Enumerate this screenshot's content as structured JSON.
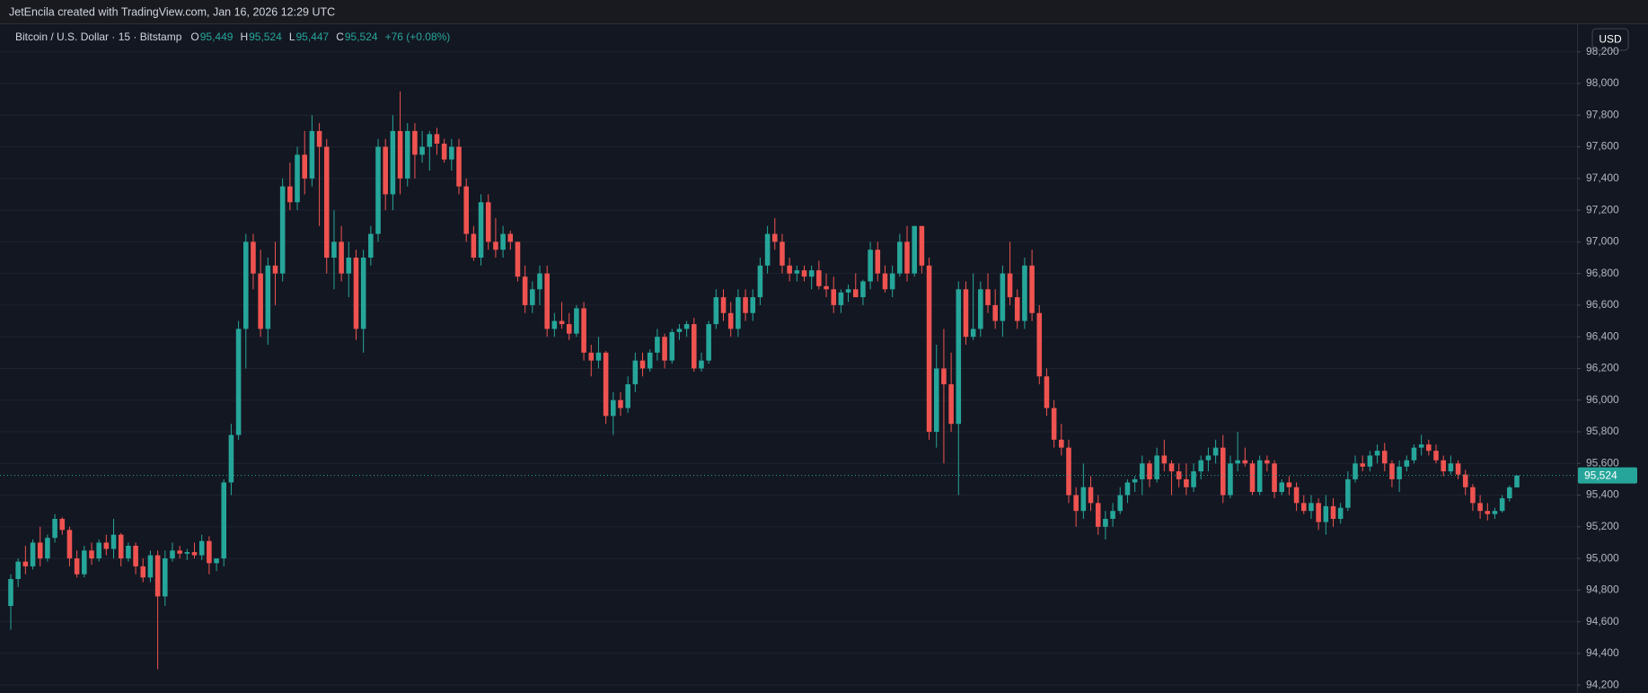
{
  "topbar": "JetEncila created with TradingView.com, Jan 16, 2026 12:29 UTC",
  "chart_data": {
    "type": "candlestick",
    "header": {
      "symbol": "Bitcoin / U.S. Dollar · 15 · Bitstamp",
      "open_label": "O",
      "open": "95,449",
      "high_label": "H",
      "high": "95,524",
      "low_label": "L",
      "low": "95,447",
      "close_label": "C",
      "close": "95,524",
      "change": "+76 (+0.08%)"
    },
    "currency": "USD",
    "up_color": "#26a69a",
    "down_color": "#ef5350",
    "grid": true,
    "ylim": [
      94150,
      98380
    ],
    "yticks": [
      {
        "value": 94200,
        "label": "94,200"
      },
      {
        "value": 94400,
        "label": "94,400"
      },
      {
        "value": 94600,
        "label": "94,600"
      },
      {
        "value": 94800,
        "label": "94,800"
      },
      {
        "value": 95000,
        "label": "95,000"
      },
      {
        "value": 95200,
        "label": "95,200"
      },
      {
        "value": 95400,
        "label": "95,400"
      },
      {
        "value": 95600,
        "label": "95,600"
      },
      {
        "value": 95800,
        "label": "95,800"
      },
      {
        "value": 96000,
        "label": "96,000"
      },
      {
        "value": 96200,
        "label": "96,200"
      },
      {
        "value": 96400,
        "label": "96,400"
      },
      {
        "value": 96600,
        "label": "96,600"
      },
      {
        "value": 96800,
        "label": "96,800"
      },
      {
        "value": 97000,
        "label": "97,000"
      },
      {
        "value": 97200,
        "label": "97,200"
      },
      {
        "value": 97400,
        "label": "97,400"
      },
      {
        "value": 97600,
        "label": "97,600"
      },
      {
        "value": 97800,
        "label": "97,800"
      },
      {
        "value": 98000,
        "label": "98,000"
      },
      {
        "value": 98200,
        "label": "98,200"
      }
    ],
    "last_price": {
      "value": 95524,
      "label": "95,524"
    },
    "candles": [
      [
        94700,
        94900,
        94550,
        94870
      ],
      [
        94870,
        95000,
        94820,
        94980
      ],
      [
        94980,
        95080,
        94900,
        94950
      ],
      [
        94950,
        95120,
        94930,
        95100
      ],
      [
        95100,
        95200,
        94950,
        95000
      ],
      [
        95000,
        95150,
        94980,
        95130
      ],
      [
        95130,
        95280,
        95100,
        95250
      ],
      [
        95250,
        95260,
        95150,
        95180
      ],
      [
        95180,
        95200,
        94950,
        95000
      ],
      [
        95000,
        95050,
        94880,
        94900
      ],
      [
        94900,
        95080,
        94880,
        95050
      ],
      [
        95050,
        95100,
        94960,
        95000
      ],
      [
        95000,
        95120,
        94980,
        95100
      ],
      [
        95100,
        95150,
        95020,
        95060
      ],
      [
        95060,
        95250,
        95000,
        95150
      ],
      [
        95150,
        95160,
        94950,
        95000
      ],
      [
        95000,
        95100,
        94980,
        95080
      ],
      [
        95080,
        95100,
        94900,
        94950
      ],
      [
        94950,
        95000,
        94850,
        94880
      ],
      [
        94880,
        95050,
        94850,
        95020
      ],
      [
        95020,
        95050,
        94300,
        94760
      ],
      [
        94760,
        95050,
        94700,
        95000
      ],
      [
        95000,
        95100,
        94980,
        95050
      ],
      [
        95050,
        95080,
        95000,
        95030
      ],
      [
        95030,
        95060,
        94990,
        95040
      ],
      [
        95040,
        95100,
        95000,
        95020
      ],
      [
        95020,
        95150,
        94990,
        95110
      ],
      [
        95110,
        95140,
        94900,
        94970
      ],
      [
        94970,
        95000,
        94920,
        95000
      ],
      [
        95000,
        95500,
        94950,
        95480
      ],
      [
        95480,
        95850,
        95400,
        95780
      ],
      [
        95780,
        96500,
        95750,
        96450
      ],
      [
        96450,
        97050,
        96200,
        97000
      ],
      [
        97000,
        97050,
        96700,
        96800
      ],
      [
        96800,
        96950,
        96400,
        96450
      ],
      [
        96450,
        96900,
        96350,
        96850
      ],
      [
        96850,
        97000,
        96600,
        96800
      ],
      [
        96800,
        97400,
        96750,
        97350
      ],
      [
        97350,
        97500,
        97200,
        97250
      ],
      [
        97250,
        97600,
        97200,
        97550
      ],
      [
        97550,
        97700,
        97300,
        97400
      ],
      [
        97400,
        97800,
        97350,
        97700
      ],
      [
        97700,
        97750,
        97100,
        97600
      ],
      [
        97600,
        97650,
        96800,
        96900
      ],
      [
        96900,
        97200,
        96700,
        97000
      ],
      [
        97000,
        97100,
        96750,
        96800
      ],
      [
        96800,
        97000,
        96650,
        96900
      ],
      [
        96900,
        96950,
        96380,
        96450
      ],
      [
        96450,
        96950,
        96300,
        96900
      ],
      [
        96900,
        97100,
        96850,
        97050
      ],
      [
        97050,
        97650,
        97000,
        97600
      ],
      [
        97600,
        97650,
        97200,
        97300
      ],
      [
        97300,
        97800,
        97200,
        97700
      ],
      [
        97700,
        97950,
        97300,
        97400
      ],
      [
        97400,
        97750,
        97350,
        97700
      ],
      [
        97700,
        97750,
        97400,
        97550
      ],
      [
        97550,
        97700,
        97500,
        97600
      ],
      [
        97600,
        97700,
        97450,
        97680
      ],
      [
        97680,
        97720,
        97550,
        97620
      ],
      [
        97620,
        97650,
        97500,
        97520
      ],
      [
        97520,
        97650,
        97450,
        97600
      ],
      [
        97600,
        97650,
        97300,
        97350
      ],
      [
        97350,
        97400,
        97000,
        97050
      ],
      [
        97050,
        97100,
        96880,
        96900
      ],
      [
        96900,
        97300,
        96850,
        97250
      ],
      [
        97250,
        97300,
        96950,
        97000
      ],
      [
        97000,
        97150,
        96900,
        96950
      ],
      [
        96950,
        97100,
        96900,
        97050
      ],
      [
        97050,
        97070,
        96950,
        97000
      ],
      [
        97000,
        97000,
        96750,
        96780
      ],
      [
        96780,
        96850,
        96550,
        96600
      ],
      [
        96600,
        96750,
        96550,
        96700
      ],
      [
        96700,
        96850,
        96600,
        96800
      ],
      [
        96800,
        96850,
        96400,
        96450
      ],
      [
        96450,
        96550,
        96400,
        96500
      ],
      [
        96500,
        96620,
        96450,
        96480
      ],
      [
        96480,
        96550,
        96380,
        96420
      ],
      [
        96420,
        96600,
        96400,
        96580
      ],
      [
        96580,
        96620,
        96250,
        96300
      ],
      [
        96300,
        96350,
        96150,
        96250
      ],
      [
        96250,
        96400,
        96200,
        96300
      ],
      [
        96300,
        96310,
        95850,
        95900
      ],
      [
        95900,
        96050,
        95780,
        96000
      ],
      [
        96000,
        96050,
        95900,
        95950
      ],
      [
        95950,
        96150,
        95920,
        96100
      ],
      [
        96100,
        96300,
        96050,
        96250
      ],
      [
        96250,
        96300,
        96150,
        96200
      ],
      [
        96200,
        96320,
        96180,
        96300
      ],
      [
        96300,
        96450,
        96250,
        96400
      ],
      [
        96400,
        96420,
        96200,
        96250
      ],
      [
        96250,
        96450,
        96230,
        96430
      ],
      [
        96430,
        96480,
        96380,
        96450
      ],
      [
        96450,
        96500,
        96400,
        96480
      ],
      [
        96480,
        96520,
        96180,
        96200
      ],
      [
        96200,
        96300,
        96180,
        96250
      ],
      [
        96250,
        96500,
        96230,
        96480
      ],
      [
        96480,
        96700,
        96450,
        96650
      ],
      [
        96650,
        96700,
        96500,
        96550
      ],
      [
        96550,
        96620,
        96400,
        96450
      ],
      [
        96450,
        96700,
        96400,
        96650
      ],
      [
        96650,
        96700,
        96500,
        96550
      ],
      [
        96550,
        96700,
        96500,
        96650
      ],
      [
        96650,
        96900,
        96600,
        96850
      ],
      [
        96850,
        97100,
        96800,
        97050
      ],
      [
        97050,
        97150,
        96950,
        97000
      ],
      [
        97000,
        97050,
        96800,
        96850
      ],
      [
        96850,
        96900,
        96750,
        96800
      ],
      [
        96800,
        96850,
        96750,
        96820
      ],
      [
        96820,
        96850,
        96750,
        96780
      ],
      [
        96780,
        96850,
        96700,
        96820
      ],
      [
        96820,
        96880,
        96700,
        96720
      ],
      [
        96720,
        96800,
        96650,
        96700
      ],
      [
        96700,
        96780,
        96550,
        96600
      ],
      [
        96600,
        96700,
        96550,
        96680
      ],
      [
        96680,
        96730,
        96620,
        96700
      ],
      [
        96700,
        96800,
        96650,
        96650
      ],
      [
        96650,
        96760,
        96600,
        96750
      ],
      [
        96750,
        97000,
        96700,
        96950
      ],
      [
        96950,
        97000,
        96750,
        96800
      ],
      [
        96800,
        96850,
        96680,
        96700
      ],
      [
        96700,
        96850,
        96650,
        96800
      ],
      [
        96800,
        97050,
        96780,
        97000
      ],
      [
        97000,
        97100,
        96750,
        96800
      ],
      [
        96800,
        97100,
        96780,
        97100
      ],
      [
        97100,
        97100,
        96800,
        96850
      ],
      [
        96850,
        96900,
        95750,
        95800
      ],
      [
        95800,
        96350,
        95700,
        96200
      ],
      [
        96200,
        96450,
        95600,
        96100
      ],
      [
        96100,
        96300,
        95800,
        95850
      ],
      [
        95850,
        96750,
        95400,
        96700
      ],
      [
        96700,
        96750,
        96350,
        96400
      ],
      [
        96400,
        96800,
        96380,
        96450
      ],
      [
        96450,
        96750,
        96400,
        96700
      ],
      [
        96700,
        96800,
        96550,
        96600
      ],
      [
        96600,
        96700,
        96450,
        96500
      ],
      [
        96500,
        96850,
        96400,
        96800
      ],
      [
        96800,
        97000,
        96600,
        96650
      ],
      [
        96650,
        96700,
        96450,
        96500
      ],
      [
        96500,
        96900,
        96450,
        96850
      ],
      [
        96850,
        96950,
        96500,
        96550
      ],
      [
        96550,
        96600,
        96100,
        96150
      ],
      [
        96150,
        96200,
        95900,
        95950
      ],
      [
        95950,
        96000,
        95700,
        95750
      ],
      [
        95750,
        95850,
        95650,
        95700
      ],
      [
        95700,
        95750,
        95350,
        95400
      ],
      [
        95400,
        95450,
        95200,
        95300
      ],
      [
        95300,
        95600,
        95250,
        95450
      ],
      [
        95450,
        95520,
        95300,
        95350
      ],
      [
        95350,
        95400,
        95150,
        95200
      ],
      [
        95200,
        95300,
        95120,
        95250
      ],
      [
        95250,
        95350,
        95200,
        95300
      ],
      [
        95300,
        95450,
        95280,
        95400
      ],
      [
        95400,
        95500,
        95350,
        95480
      ],
      [
        95480,
        95520,
        95420,
        95500
      ],
      [
        95500,
        95650,
        95400,
        95600
      ],
      [
        95600,
        95620,
        95450,
        95500
      ],
      [
        95500,
        95700,
        95480,
        95650
      ],
      [
        95650,
        95750,
        95550,
        95600
      ],
      [
        95600,
        95620,
        95400,
        95550
      ],
      [
        95550,
        95600,
        95450,
        95500
      ],
      [
        95500,
        95600,
        95400,
        95450
      ],
      [
        95450,
        95600,
        95420,
        95550
      ],
      [
        95550,
        95650,
        95500,
        95620
      ],
      [
        95620,
        95700,
        95550,
        95650
      ],
      [
        95650,
        95750,
        95600,
        95700
      ],
      [
        95700,
        95780,
        95350,
        95400
      ],
      [
        95400,
        95650,
        95380,
        95600
      ],
      [
        95600,
        95800,
        95550,
        95620
      ],
      [
        95620,
        95700,
        95580,
        95600
      ],
      [
        95600,
        95620,
        95400,
        95420
      ],
      [
        95420,
        95650,
        95400,
        95620
      ],
      [
        95620,
        95650,
        95550,
        95600
      ],
      [
        95600,
        95620,
        95380,
        95420
      ],
      [
        95420,
        95500,
        95400,
        95480
      ],
      [
        95480,
        95520,
        95400,
        95450
      ],
      [
        95450,
        95480,
        95300,
        95350
      ],
      [
        95350,
        95400,
        95280,
        95300
      ],
      [
        95300,
        95400,
        95250,
        95350
      ],
      [
        95350,
        95380,
        95180,
        95230
      ],
      [
        95230,
        95400,
        95150,
        95330
      ],
      [
        95330,
        95380,
        95200,
        95250
      ],
      [
        95250,
        95350,
        95220,
        95320
      ],
      [
        95320,
        95550,
        95300,
        95500
      ],
      [
        95500,
        95650,
        95480,
        95600
      ],
      [
        95600,
        95650,
        95550,
        95580
      ],
      [
        95580,
        95680,
        95550,
        95650
      ],
      [
        95650,
        95720,
        95600,
        95680
      ],
      [
        95680,
        95730,
        95550,
        95600
      ],
      [
        95600,
        95620,
        95450,
        95500
      ],
      [
        95500,
        95620,
        95420,
        95580
      ],
      [
        95580,
        95650,
        95550,
        95620
      ],
      [
        95620,
        95720,
        95600,
        95700
      ],
      [
        95700,
        95780,
        95650,
        95720
      ],
      [
        95720,
        95750,
        95650,
        95680
      ],
      [
        95680,
        95720,
        95600,
        95620
      ],
      [
        95620,
        95650,
        95520,
        95550
      ],
      [
        95550,
        95650,
        95530,
        95600
      ],
      [
        95600,
        95620,
        95500,
        95530
      ],
      [
        95530,
        95560,
        95400,
        95450
      ],
      [
        95450,
        95470,
        95300,
        95350
      ],
      [
        95350,
        95400,
        95250,
        95300
      ],
      [
        95300,
        95350,
        95240,
        95280
      ],
      [
        95280,
        95320,
        95250,
        95300
      ],
      [
        95300,
        95400,
        95290,
        95380
      ],
      [
        95380,
        95460,
        95360,
        95449
      ],
      [
        95449,
        95524,
        95447,
        95524
      ]
    ]
  }
}
